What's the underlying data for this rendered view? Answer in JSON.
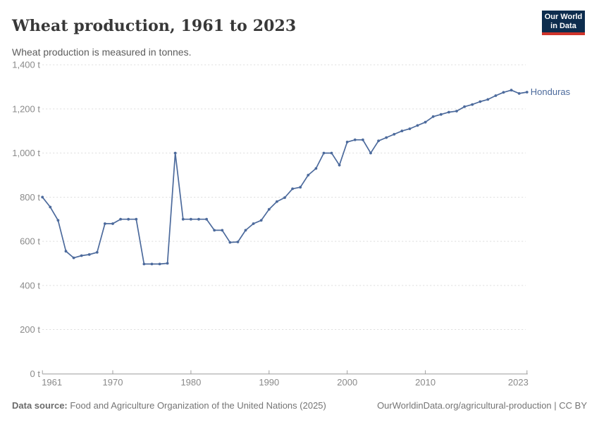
{
  "header": {
    "title": "Wheat production, 1961 to 2023",
    "subtitle": "Wheat production is measured in tonnes."
  },
  "logo": {
    "line1": "Our World",
    "line2": "in Data"
  },
  "footer": {
    "source_label": "Data source:",
    "source_text": " Food and Agriculture Organization of the United Nations (2025)",
    "link_text": "OurWorldinData.org/agricultural-production | CC BY"
  },
  "colors": {
    "series_blue": "#4C6A9C",
    "grid": "#dcdcdc",
    "axis": "#9e9e9e",
    "tick_text": "#8a8a8a",
    "logo_navy": "#0d2d4e",
    "logo_red": "#cf342b"
  },
  "chart_data": {
    "type": "line",
    "title": "Wheat production, 1961 to 2023",
    "subtitle": "Wheat production is measured in tonnes.",
    "unit": "t",
    "xlim": [
      1961,
      2023
    ],
    "ylim": [
      0,
      1400
    ],
    "x_ticks": [
      1961,
      1970,
      1980,
      1990,
      2000,
      2010,
      2023
    ],
    "y_ticks": [
      0,
      200,
      400,
      600,
      800,
      1000,
      1200,
      1400
    ],
    "grid": "horizontal-dashed",
    "legend_position": "end-of-line",
    "series": [
      {
        "name": "Honduras",
        "x": [
          1961,
          1962,
          1963,
          1964,
          1965,
          1966,
          1967,
          1968,
          1969,
          1970,
          1971,
          1972,
          1973,
          1974,
          1975,
          1976,
          1977,
          1978,
          1979,
          1980,
          1981,
          1982,
          1983,
          1984,
          1985,
          1986,
          1987,
          1988,
          1989,
          1990,
          1991,
          1992,
          1993,
          1994,
          1995,
          1996,
          1997,
          1998,
          1999,
          2000,
          2001,
          2002,
          2003,
          2004,
          2005,
          2006,
          2007,
          2008,
          2009,
          2010,
          2011,
          2012,
          2013,
          2014,
          2015,
          2016,
          2017,
          2018,
          2019,
          2020,
          2021,
          2022,
          2023
        ],
        "values": [
          800,
          755,
          695,
          555,
          525,
          535,
          540,
          550,
          680,
          680,
          700,
          700,
          700,
          497,
          497,
          497,
          500,
          1000,
          700,
          700,
          700,
          700,
          650,
          650,
          595,
          597,
          650,
          680,
          695,
          745,
          780,
          798,
          838,
          845,
          900,
          930,
          1000,
          1000,
          945,
          1050,
          1060,
          1060,
          1000,
          1055,
          1070,
          1085,
          1100,
          1110,
          1125,
          1140,
          1165,
          1175,
          1185,
          1190,
          1210,
          1220,
          1233,
          1243,
          1260,
          1275,
          1285,
          1270,
          1276
        ]
      }
    ]
  }
}
